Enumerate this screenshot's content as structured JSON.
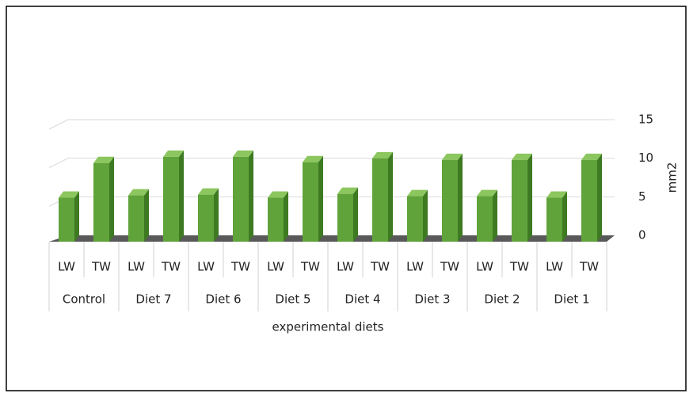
{
  "chart_data": {
    "type": "bar",
    "groups": [
      "Control",
      "Diet 7",
      "Diet 6",
      "Diet 5",
      "Diet 4",
      "Diet 3",
      "Diet 2",
      "Diet 1"
    ],
    "categories": [
      "LW",
      "TW",
      "LW",
      "TW",
      "LW",
      "TW",
      "LW",
      "TW",
      "LW",
      "TW",
      "LW",
      "TW",
      "LW",
      "TW",
      "LW",
      "TW"
    ],
    "values": [
      5.7,
      10.2,
      6.0,
      11.0,
      6.1,
      11.0,
      5.7,
      10.3,
      6.2,
      10.8,
      5.9,
      10.6,
      5.9,
      10.6,
      5.7,
      10.6
    ],
    "color": "#5fa33a",
    "xlabel": "experimental diets",
    "ylabel": "mm2",
    "ylim": [
      0,
      15
    ],
    "yticks": [
      0,
      5,
      10,
      15
    ],
    "grid": true
  }
}
